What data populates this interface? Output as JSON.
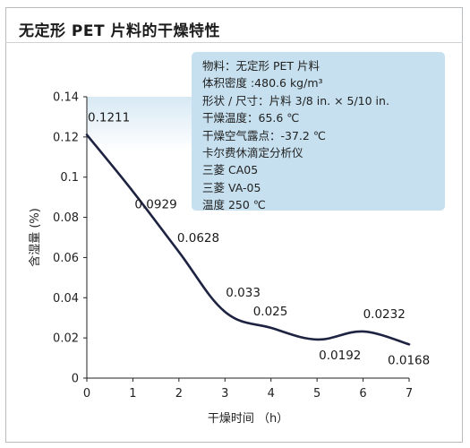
{
  "chart_data": {
    "type": "line",
    "title": "无定形 PET 片料的干燥特性",
    "xlabel": "干燥时间 （h）",
    "ylabel": "含湿量 (%)",
    "xlim": [
      0,
      7
    ],
    "ylim": [
      0,
      0.14
    ],
    "x_ticks": [
      "0",
      "1",
      "2",
      "3",
      "4",
      "5",
      "6",
      "7"
    ],
    "y_ticks": [
      "0",
      "0.02",
      "0.04",
      "0.06",
      "0.08",
      "0.1",
      "0.12",
      "0.14"
    ],
    "grid": false,
    "series": [
      {
        "x": [
          0,
          1,
          2,
          3,
          4,
          5,
          6,
          7
        ],
        "values": [
          0.1211,
          0.0929,
          0.0628,
          0.033,
          0.025,
          0.0192,
          0.0232,
          0.0168
        ],
        "labels": [
          "0.1211",
          "0.0929",
          "0.0628",
          "0.033",
          "0.025",
          "0.0192",
          "0.0232",
          "0.0168"
        ]
      }
    ],
    "info_box": [
      "物料：无定形 PET 片料",
      "体积密度 :480.6 kg/m³",
      "形状 / 尺寸：片料 3/8 in. × 5/10 in.",
      "干燥温度：65.6 ℃",
      "干燥空气露点：-37.2 ℃",
      "卡尔费休滴定分析仪",
      "三菱 CA05",
      "三菱 VA-05",
      "温度 250 ℃"
    ],
    "colors": {
      "line": "#1d2340",
      "info_box": "#c6e0ef",
      "plot_gradient_top": "#d7e9f4"
    }
  }
}
